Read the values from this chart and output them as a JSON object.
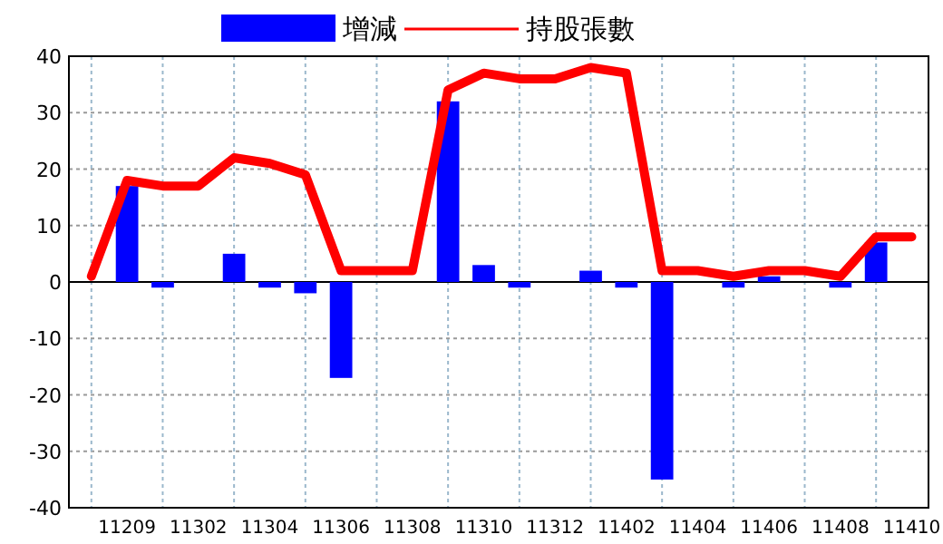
{
  "chart_data": {
    "type": "bar",
    "categories": [
      null,
      "11209",
      null,
      "11302",
      null,
      "11304",
      null,
      "11306",
      null,
      "11308",
      null,
      "11310",
      null,
      "11312",
      null,
      "11402",
      null,
      "11404",
      null,
      "11406",
      null,
      "11408",
      null,
      "11410"
    ],
    "series": [
      {
        "name": "增減",
        "color": "#0000ff",
        "values": [
          null,
          17,
          -1,
          null,
          5,
          -1,
          -2,
          -17,
          null,
          null,
          32,
          3,
          -1,
          null,
          2,
          -1,
          -35,
          null,
          -1,
          1,
          null,
          -1,
          7,
          null
        ]
      },
      {
        "name": "持股張數",
        "type": "line",
        "color": "#ff0000",
        "line_style": "solid",
        "values": [
          1,
          18,
          17,
          17,
          22,
          21,
          19,
          2,
          2,
          2,
          34,
          37,
          36,
          36,
          38,
          37,
          2,
          2,
          1,
          2,
          2,
          1,
          8,
          8
        ]
      }
    ],
    "ylim": [
      -40,
      40
    ],
    "yticks": [
      -40,
      -30,
      -20,
      -10,
      0,
      10,
      20,
      30,
      40
    ],
    "grid": true,
    "legend": "top"
  }
}
